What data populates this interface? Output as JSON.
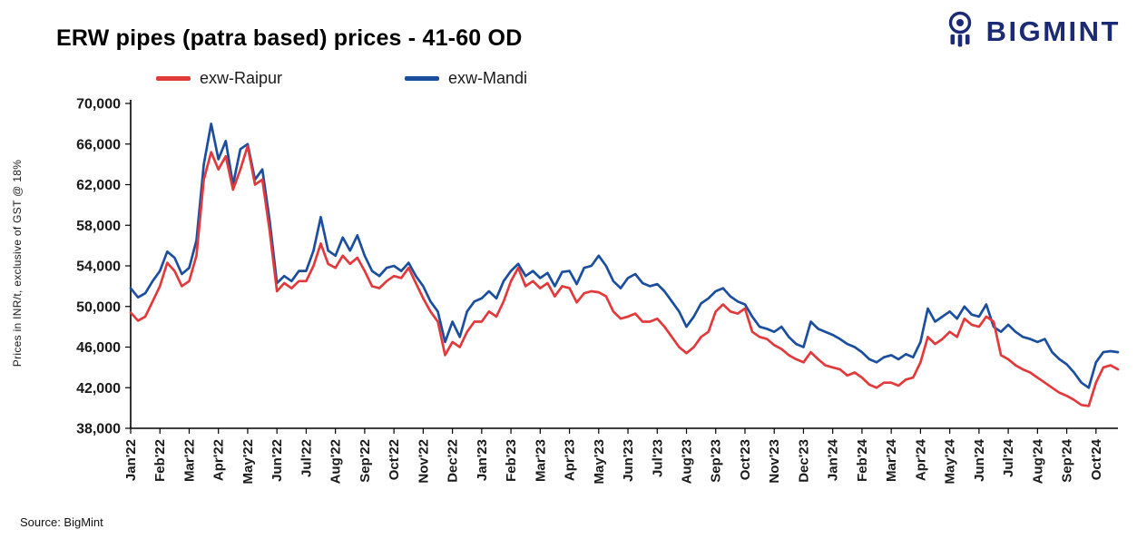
{
  "header": {
    "brand": "BIGMINT"
  },
  "source": "Source: BigMint",
  "chart_data": {
    "type": "line",
    "title": "ERW pipes (patra based) prices - 41-60 OD",
    "xlabel": "",
    "ylabel": "Prices in INR/t,  exclusive of GST @ 18%",
    "ylim": [
      38000,
      70000
    ],
    "ytick_step": 4000,
    "grid": false,
    "legend_position": "top-left",
    "points_per_month": 4,
    "categories": [
      "Jan'22",
      "Feb'22",
      "Mar'22",
      "Apr'22",
      "May'22",
      "Jun'22",
      "Jul'22",
      "Aug'22",
      "Sep'22",
      "Oct'22",
      "Nov'22",
      "Dec'22",
      "Jan'23",
      "Feb'23",
      "Mar'23",
      "Apr'23",
      "May'23",
      "Jun'23",
      "Jul'23",
      "Aug'23",
      "Sep'23",
      "Oct'23",
      "Nov'23",
      "Dec'23",
      "Jan'24",
      "Feb'24",
      "Mar'24",
      "Apr'24",
      "May'24",
      "Jun'24",
      "Jul'24",
      "Aug'24",
      "Sep'24",
      "Oct'24"
    ],
    "series": [
      {
        "name": "exw-Raipur",
        "color": "#e23a3c",
        "values": [
          49400,
          48600,
          49000,
          50500,
          52000,
          54300,
          53500,
          52000,
          52500,
          55000,
          62500,
          65200,
          63500,
          64800,
          61500,
          63500,
          65800,
          62000,
          62500,
          57500,
          51500,
          52300,
          51800,
          52500,
          52500,
          54000,
          56200,
          54200,
          53800,
          55000,
          54200,
          54800,
          53500,
          52000,
          51800,
          52500,
          53000,
          52800,
          53800,
          52300,
          50800,
          49500,
          48500,
          45200,
          46500,
          46000,
          47500,
          48500,
          48500,
          49500,
          49000,
          50500,
          52500,
          53800,
          52000,
          52500,
          51800,
          52300,
          51000,
          52000,
          51800,
          50400,
          51300,
          51500,
          51400,
          51000,
          49500,
          48800,
          49000,
          49300,
          48500,
          48500,
          48800,
          48000,
          47000,
          46000,
          45400,
          46000,
          47000,
          47500,
          49500,
          50200,
          49500,
          49300,
          49800,
          47500,
          47000,
          46800,
          46200,
          45800,
          45200,
          44800,
          44500,
          45500,
          44800,
          44200,
          44000,
          43800,
          43200,
          43500,
          43000,
          42300,
          42000,
          42500,
          42500,
          42200,
          42800,
          43000,
          44500,
          47000,
          46300,
          46800,
          47500,
          47000,
          48800,
          48200,
          48000,
          49000,
          48500,
          45200,
          44800,
          44200,
          43800,
          43500,
          43000,
          42500,
          42000,
          41500,
          41200,
          40800,
          40300,
          40200,
          42500,
          44000,
          44200,
          43800
        ]
      },
      {
        "name": "exw-Mandi",
        "color": "#1b4f9e",
        "values": [
          51800,
          50900,
          51300,
          52500,
          53500,
          55400,
          54800,
          53200,
          53800,
          56500,
          64000,
          68000,
          64500,
          66300,
          62000,
          65500,
          66000,
          62500,
          63500,
          58500,
          52300,
          53000,
          52500,
          53500,
          53500,
          55500,
          58800,
          55500,
          55000,
          56800,
          55500,
          57000,
          55000,
          53500,
          53000,
          53800,
          54000,
          53500,
          54300,
          53000,
          52000,
          50500,
          49500,
          46500,
          48500,
          47000,
          49500,
          50500,
          50800,
          51500,
          50800,
          52500,
          53500,
          54200,
          53000,
          53500,
          52800,
          53300,
          52000,
          53400,
          53500,
          52200,
          53800,
          54000,
          55000,
          54000,
          52500,
          51800,
          52800,
          53200,
          52300,
          52000,
          52200,
          51500,
          50500,
          49500,
          48000,
          49000,
          50300,
          50800,
          51500,
          51800,
          51000,
          50500,
          50200,
          49000,
          48000,
          47800,
          47500,
          48000,
          47000,
          46300,
          46000,
          48500,
          47800,
          47500,
          47200,
          46800,
          46300,
          46000,
          45500,
          44800,
          44500,
          45000,
          45200,
          44800,
          45300,
          45000,
          46500,
          49800,
          48500,
          49000,
          49500,
          48800,
          50000,
          49200,
          49000,
          50200,
          48000,
          47500,
          48200,
          47500,
          47000,
          46800,
          46500,
          46800,
          45500,
          44800,
          44300,
          43500,
          42500,
          42000,
          44500,
          45500,
          45600,
          45500
        ]
      }
    ]
  }
}
